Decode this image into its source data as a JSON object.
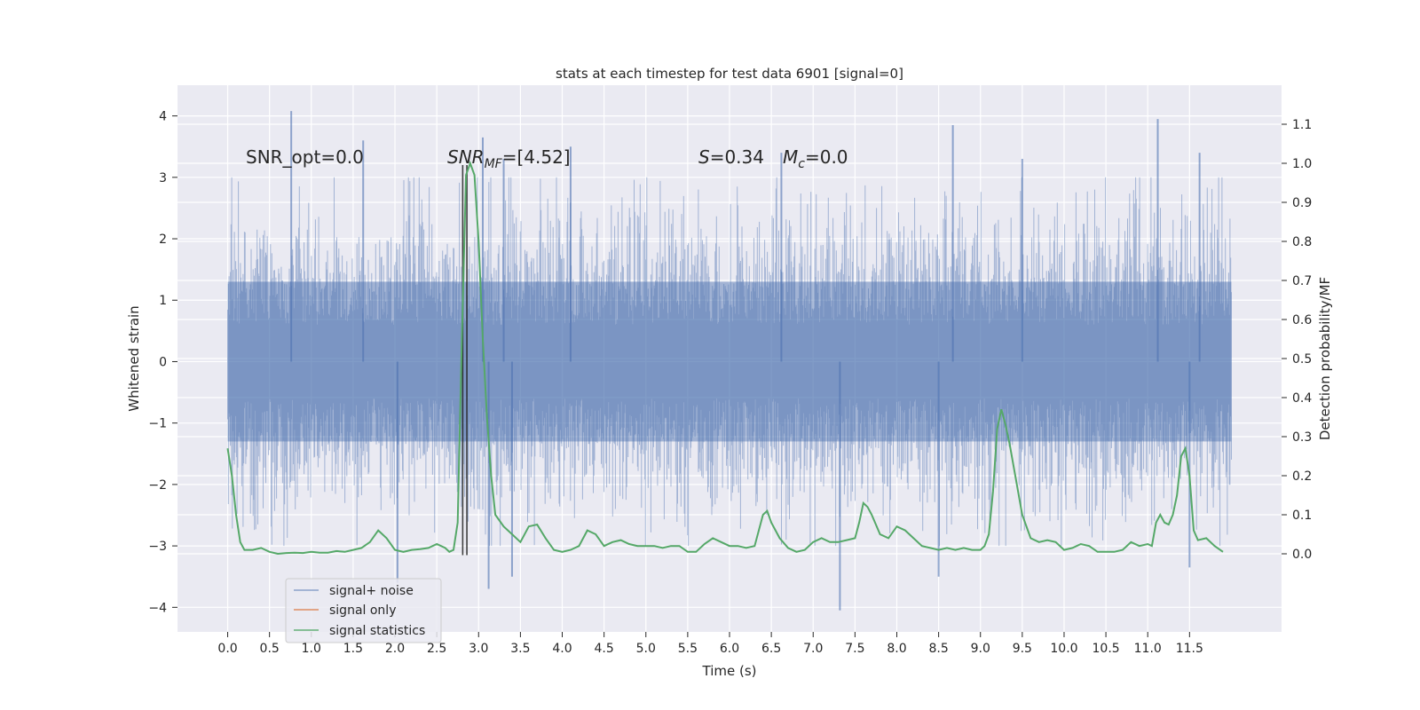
{
  "chart_data": {
    "type": "line",
    "title": "stats at each timestep for test data 6901 [signal=0]",
    "xlabel": "Time (s)",
    "ylabel": "Whitened strain",
    "ylabel_right": "Detection probability/MF",
    "xlim": [
      -0.6,
      12.6
    ],
    "ylim": [
      -4.4,
      4.5
    ],
    "ylim_right": [
      -0.2,
      1.2
    ],
    "x_ticks": [
      "0.0",
      "0.5",
      "1.0",
      "1.5",
      "2.0",
      "2.5",
      "3.0",
      "3.5",
      "4.0",
      "4.5",
      "5.0",
      "5.5",
      "6.0",
      "6.5",
      "7.0",
      "7.5",
      "8.0",
      "8.5",
      "9.0",
      "9.5",
      "10.0",
      "10.5",
      "11.0",
      "11.5"
    ],
    "y_ticks": [
      4,
      3,
      2,
      1,
      0,
      -1,
      -2,
      -3,
      -4
    ],
    "y_ticks_right": [
      "1.1",
      "1.0",
      "0.9",
      "0.8",
      "0.7",
      "0.6",
      "0.5",
      "0.4",
      "0.3",
      "0.2",
      "0.1",
      "0.0"
    ],
    "grid": true,
    "legend_position": "lower-left",
    "annotations": {
      "snr_opt": "SNR_opt=0.0",
      "snr_mf_main": "SNR",
      "snr_mf_sub": "MF",
      "snr_mf_value": "=[4.52]",
      "s_symbol": "S",
      "s_value": "=0.34",
      "mc_main": "M",
      "mc_sub": "c",
      "mc_value": "=0.0"
    },
    "vertical_markers": [
      2.81,
      2.86
    ],
    "series": [
      {
        "name": "signal+ noise",
        "color": "#4c72b0",
        "axis": "left",
        "description_values": "dense whitened noise between roughly -4.0 and 4.1 over 0.0–12.0 s",
        "spike_x": [
          0.76,
          1.62,
          2.03,
          3.05,
          3.12,
          3.3,
          3.4,
          4.1,
          6.62,
          7.32,
          8.5,
          8.67,
          9.5,
          11.12,
          11.5,
          11.62
        ],
        "spike_y": [
          4.08,
          3.6,
          -3.6,
          3.65,
          -3.7,
          3.3,
          -3.5,
          3.5,
          3.4,
          -4.05,
          -3.5,
          3.85,
          3.3,
          3.95,
          -3.35,
          3.4
        ]
      },
      {
        "name": "signal only",
        "color": "#dd8452",
        "axis": "left",
        "x": [],
        "y": []
      },
      {
        "name": "signal statistics",
        "color": "#55a868",
        "axis": "right",
        "x": [
          0.0,
          0.05,
          0.1,
          0.15,
          0.2,
          0.25,
          0.3,
          0.4,
          0.5,
          0.6,
          0.7,
          0.8,
          0.9,
          1.0,
          1.1,
          1.2,
          1.3,
          1.4,
          1.5,
          1.6,
          1.7,
          1.8,
          1.9,
          2.0,
          2.1,
          2.2,
          2.3,
          2.4,
          2.5,
          2.6,
          2.65,
          2.7,
          2.75,
          2.8,
          2.85,
          2.9,
          2.95,
          3.0,
          3.05,
          3.1,
          3.15,
          3.2,
          3.3,
          3.4,
          3.5,
          3.6,
          3.7,
          3.8,
          3.9,
          4.0,
          4.1,
          4.2,
          4.3,
          4.4,
          4.5,
          4.6,
          4.7,
          4.8,
          4.9,
          5.0,
          5.1,
          5.2,
          5.3,
          5.4,
          5.5,
          5.6,
          5.7,
          5.8,
          5.9,
          6.0,
          6.1,
          6.2,
          6.3,
          6.4,
          6.45,
          6.5,
          6.6,
          6.7,
          6.8,
          6.9,
          7.0,
          7.1,
          7.2,
          7.3,
          7.4,
          7.5,
          7.55,
          7.6,
          7.65,
          7.7,
          7.8,
          7.9,
          8.0,
          8.1,
          8.2,
          8.3,
          8.4,
          8.5,
          8.6,
          8.7,
          8.8,
          8.9,
          9.0,
          9.05,
          9.1,
          9.15,
          9.2,
          9.25,
          9.3,
          9.35,
          9.4,
          9.5,
          9.6,
          9.7,
          9.8,
          9.9,
          10.0,
          10.1,
          10.2,
          10.3,
          10.4,
          10.5,
          10.6,
          10.7,
          10.8,
          10.9,
          11.0,
          11.05,
          11.1,
          11.15,
          11.2,
          11.25,
          11.3,
          11.35,
          11.4,
          11.45,
          11.5,
          11.55,
          11.6,
          11.7,
          11.8,
          11.9
        ],
        "y": [
          0.27,
          0.2,
          0.1,
          0.03,
          0.01,
          0.01,
          0.01,
          0.015,
          0.005,
          0.0,
          0.002,
          0.003,
          0.002,
          0.005,
          0.003,
          0.003,
          0.007,
          0.005,
          0.01,
          0.015,
          0.03,
          0.06,
          0.04,
          0.01,
          0.005,
          0.01,
          0.012,
          0.015,
          0.025,
          0.015,
          0.005,
          0.01,
          0.08,
          0.55,
          0.97,
          1.0,
          0.97,
          0.8,
          0.55,
          0.35,
          0.2,
          0.1,
          0.07,
          0.05,
          0.03,
          0.07,
          0.075,
          0.04,
          0.01,
          0.005,
          0.01,
          0.02,
          0.06,
          0.05,
          0.02,
          0.03,
          0.035,
          0.025,
          0.02,
          0.02,
          0.02,
          0.015,
          0.02,
          0.02,
          0.005,
          0.005,
          0.025,
          0.04,
          0.03,
          0.02,
          0.02,
          0.015,
          0.02,
          0.1,
          0.11,
          0.08,
          0.04,
          0.015,
          0.005,
          0.01,
          0.03,
          0.04,
          0.03,
          0.03,
          0.035,
          0.04,
          0.08,
          0.13,
          0.12,
          0.1,
          0.05,
          0.04,
          0.07,
          0.06,
          0.04,
          0.02,
          0.015,
          0.01,
          0.015,
          0.01,
          0.015,
          0.01,
          0.01,
          0.02,
          0.05,
          0.16,
          0.32,
          0.37,
          0.33,
          0.28,
          0.22,
          0.1,
          0.04,
          0.03,
          0.035,
          0.03,
          0.01,
          0.015,
          0.025,
          0.02,
          0.005,
          0.005,
          0.005,
          0.01,
          0.03,
          0.02,
          0.025,
          0.02,
          0.08,
          0.1,
          0.08,
          0.075,
          0.1,
          0.15,
          0.25,
          0.27,
          0.2,
          0.06,
          0.035,
          0.04,
          0.02,
          0.005
        ]
      }
    ]
  }
}
